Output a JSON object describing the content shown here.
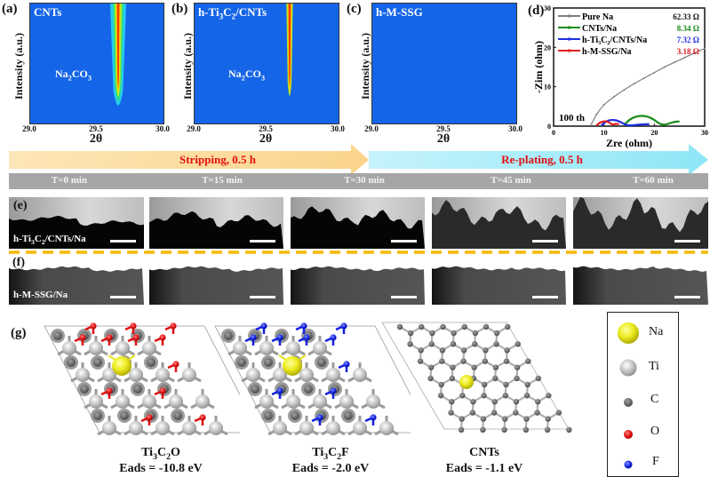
{
  "panels": {
    "a": {
      "label": "(a)",
      "title": "CNTs",
      "annotation": "Na2CO3",
      "ylabel": "Intensity (a.u.)",
      "xlabel": "2θ",
      "xticks": [
        "29.0",
        "29.5",
        "30.0"
      ]
    },
    "b": {
      "label": "(b)",
      "title_parts": [
        "h-Ti",
        "3",
        "C",
        "2",
        "/CNTs"
      ],
      "annotation": "Na2CO3",
      "ylabel": "Intensity (a.u.)",
      "xlabel": "2θ",
      "xticks": [
        "29.0",
        "29.5",
        "30.0"
      ]
    },
    "c": {
      "label": "(c)",
      "title": "h-M-SSG",
      "ylabel": "Intensity (a.u.)",
      "xlabel": "2θ",
      "xticks": [
        "29.0",
        "29.5",
        "30.0"
      ]
    },
    "d": {
      "label": "(d)",
      "annotation": "100 th"
    }
  },
  "chart_data": [
    {
      "type": "heatmap",
      "title": "CNTs",
      "xlabel": "2θ",
      "ylabel": "Intensity (a.u.)",
      "xlim": [
        29.0,
        30.0
      ],
      "annotation": "Na2CO3",
      "peaks": [
        {
          "x": 29.66,
          "strength": 1.0
        },
        {
          "x": 29.73,
          "strength": 0.55
        }
      ]
    },
    {
      "type": "heatmap",
      "title": "h-Ti3C2/CNTs",
      "xlabel": "2θ",
      "ylabel": "Intensity (a.u.)",
      "xlim": [
        29.0,
        30.0
      ],
      "annotation": "Na2CO3",
      "peaks": [
        {
          "x": 29.66,
          "strength": 0.8
        },
        {
          "x": 29.72,
          "strength": 0.45
        }
      ]
    },
    {
      "type": "heatmap",
      "title": "h-M-SSG",
      "xlabel": "2θ",
      "ylabel": "Intensity (a.u.)",
      "xlim": [
        29.0,
        30.0
      ],
      "peaks": []
    },
    {
      "type": "line",
      "title": "",
      "xlabel": "Zre (ohm)",
      "ylabel": "-Zim (ohm)",
      "xlim": [
        0,
        30
      ],
      "ylim": [
        0,
        30
      ],
      "xticks": [
        "0",
        "10",
        "20",
        "30"
      ],
      "yticks": [
        "0",
        "10",
        "20",
        "30"
      ],
      "legend": "top-left",
      "annotation": "100 th",
      "series": [
        {
          "name": "Pure Na",
          "resistance": "62.33 Ω",
          "color": "#808080",
          "x": [
            7.5,
            8.5,
            10,
            12,
            14,
            16,
            18,
            20,
            22,
            24,
            26,
            28,
            30
          ],
          "y": [
            0.5,
            3,
            5.5,
            7.5,
            9.2,
            10.8,
            12.2,
            13.6,
            15,
            16.2,
            17.4,
            18.6,
            19.7
          ]
        },
        {
          "name": "CNTs/Na",
          "resistance": "8.34 Ω",
          "color": "#1a8c1a",
          "x": [
            14,
            15,
            16,
            17,
            18,
            19,
            20,
            21,
            22,
            23,
            24,
            25
          ],
          "y": [
            0.3,
            1.6,
            2.3,
            2.6,
            2.6,
            2.3,
            1.6,
            0.6,
            0.3,
            0.7,
            1.1,
            1.2
          ]
        },
        {
          "name": "h-Ti3C2/CNTs/Na",
          "resistance": "7.32 Ω",
          "color": "#1f2fe0",
          "x": [
            9.5,
            10.5,
            11.5,
            12.5,
            13.5,
            14.5,
            15.5,
            17,
            19
          ],
          "y": [
            0.2,
            1.3,
            1.6,
            1.5,
            0.9,
            0.2,
            0.2,
            0.4,
            0.5
          ]
        },
        {
          "name": "h-M-SSG/Na",
          "resistance": "3.18 Ω",
          "color": "#e01f1f",
          "x": [
            8.5,
            9.3,
            10.2,
            11.0,
            11.7,
            12.3,
            13.0
          ],
          "y": [
            0.2,
            1.0,
            1.3,
            1.0,
            0.3,
            0.6,
            0.5
          ]
        }
      ]
    }
  ],
  "timeline": {
    "stripping_label": "Stripping, 0.5 h",
    "replating_label": "Re-plating, 0.5 h",
    "times": [
      "T=0 min",
      "T=15 min",
      "T=30 min",
      "T=45 min",
      "T=60 min"
    ]
  },
  "rows": {
    "e": {
      "label": "(e)",
      "sample_parts": [
        "h-Ti",
        "3",
        "C",
        "2",
        "/CNTs/Na"
      ]
    },
    "f": {
      "label": "(f)",
      "sample": "h-M-SSG/Na"
    }
  },
  "g": {
    "label": "(g)",
    "structures": [
      {
        "name_parts": [
          "Ti",
          "3",
          "C",
          "2",
          "O"
        ],
        "energy": "Eads = -10.8 eV"
      },
      {
        "name_parts": [
          "Ti",
          "3",
          "C",
          "2",
          "F"
        ],
        "energy": "Eads = -2.0 eV"
      },
      {
        "name": "CNTs",
        "energy": "Eads = -1.1 eV"
      }
    ],
    "legend": [
      {
        "element": "Na",
        "color": "#e8e020"
      },
      {
        "element": "Ti",
        "color": "#c4c4c4"
      },
      {
        "element": "C",
        "color": "#6a6a6a"
      },
      {
        "element": "O",
        "color": "#e01010"
      },
      {
        "element": "F",
        "color": "#1020e0"
      }
    ]
  }
}
